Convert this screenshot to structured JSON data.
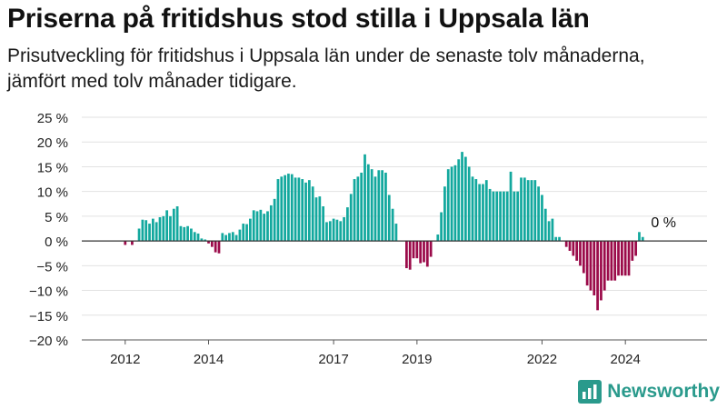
{
  "title": "Priserna på fritidshus stod stilla i Uppsala län",
  "subtitle": "Prisutveckling för fritidshus i Uppsala län under de senaste tolv månaderna, jämfört med tolv månader tidigare.",
  "brand": "Newsworthy",
  "colors": {
    "positive": "#13a89e",
    "negative": "#9b0b4a",
    "brand": "#2a9a8c"
  },
  "chart_data": {
    "type": "bar",
    "x_start": "2011-01",
    "x_end": "2025-12",
    "ylim": [
      -20,
      25
    ],
    "yticks": [
      -20,
      -15,
      -10,
      -5,
      0,
      5,
      10,
      15,
      20,
      25
    ],
    "ytick_labels": [
      "−20 %",
      "−15 %",
      "−10 %",
      "−5 %",
      "0 %",
      "5 %",
      "10 %",
      "15 %",
      "20 %",
      "25 %"
    ],
    "xtick_labels": [
      "2012",
      "2014",
      "2017",
      "2019",
      "2022",
      "2024"
    ],
    "xtick_dates": [
      "2012-01",
      "2014-01",
      "2017-01",
      "2019-01",
      "2022-01",
      "2024-01"
    ],
    "annotation": {
      "date": "2024-12",
      "text": "0 %"
    },
    "series": [
      {
        "start": "2012-01",
        "interval": "month",
        "values": [
          -0.8,
          0,
          -0.8,
          0,
          2.5,
          4.3,
          4.2,
          3.5,
          4.5,
          3.8,
          4.8,
          5.0,
          6.2,
          5.0,
          6.5,
          7.0,
          3.0,
          2.8,
          3.0,
          2.5,
          1.8,
          1.5,
          0.5,
          0.3,
          -0.5,
          -1.2,
          -2.3,
          -2.5,
          1.6,
          1.2,
          1.6,
          1.8,
          1.2,
          2.3,
          3.5,
          3.4,
          4.5,
          6.2,
          6.0,
          6.3,
          5.5,
          6.0,
          7.2,
          8.5,
          12.5,
          13.0,
          13.3,
          13.6,
          13.5,
          12.8,
          12.8,
          12.5,
          11.8,
          12.3,
          11.0,
          8.8,
          9.0,
          7.0,
          3.8,
          4.0,
          4.5,
          4.3,
          4.0,
          4.8,
          6.8,
          9.5,
          12.5,
          13.0,
          13.8,
          17.5,
          15.5,
          14.5,
          13.0,
          14.3,
          14.3,
          13.8,
          9.3,
          6.5,
          3.5,
          0.0,
          0.0,
          -5.5,
          -5.8,
          -3.5,
          -3.5,
          -4.5,
          -4.3,
          -5.2,
          -3.2,
          0.0,
          1.3,
          5.8,
          11.0,
          14.5,
          15.0,
          15.3,
          16.5,
          18.0,
          17.0,
          15.0,
          13.0,
          12.5,
          11.5,
          11.5,
          12.3,
          10.5,
          10.0,
          10.0,
          10.0,
          10.0,
          10.0,
          14.0,
          10.0,
          10.0,
          12.8,
          12.8,
          12.3,
          12.3,
          12.3,
          11.0,
          9.3,
          6.5,
          4.0,
          4.5,
          0.8,
          0.8,
          0.0,
          -1.2,
          -2.0,
          -3.0,
          -4.0,
          -5.0,
          -6.5,
          -9.0,
          -10.0,
          -11.0,
          -14.0,
          -12.0,
          -10.0,
          -8.0,
          -8.0,
          -8.0,
          -7.0,
          -7.0,
          -7.0,
          -7.0,
          -4.0,
          -3.0,
          1.8,
          0.8
        ]
      }
    ]
  }
}
